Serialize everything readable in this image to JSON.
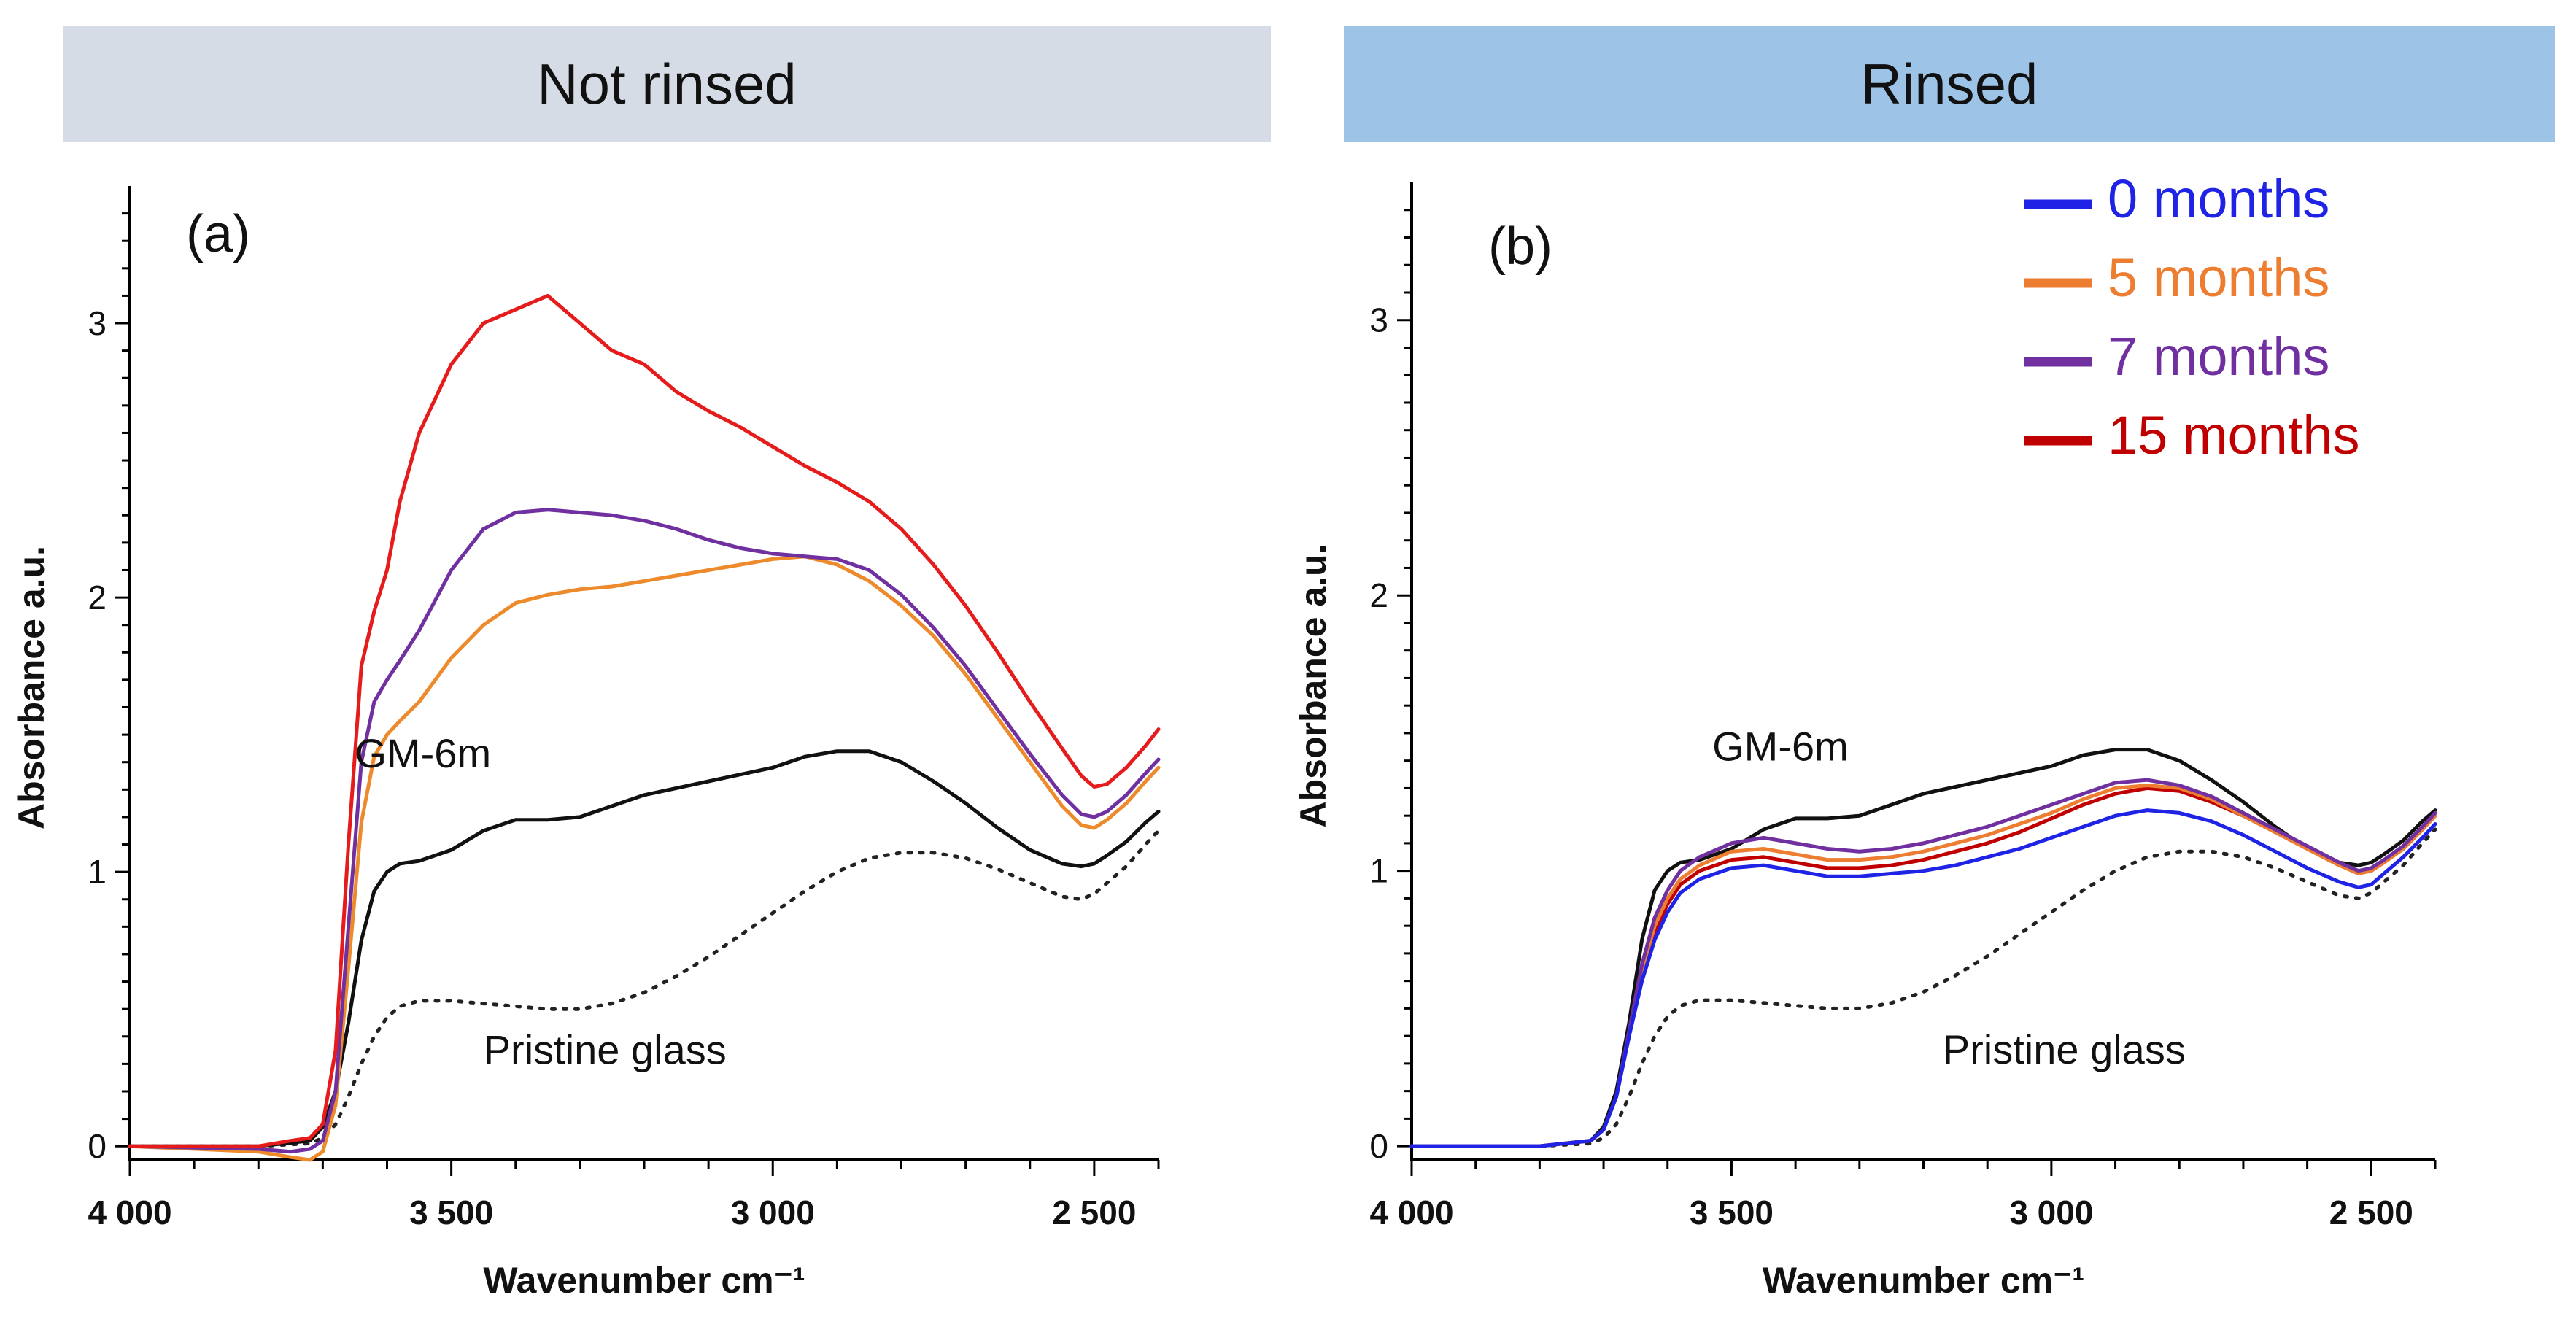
{
  "panels": [
    {
      "banner": "Not rinsed",
      "banner_color": "#d6dce5"
    },
    {
      "banner": "Rinsed",
      "banner_color": "#9dc3e6"
    }
  ],
  "chart_data": [
    {
      "type": "line",
      "panel_label": "(a)",
      "xlabel": "Wavenumber cm⁻¹",
      "ylabel": "Absorbance a.u.",
      "xlim": [
        4000,
        2400
      ],
      "ylim": [
        -0.05,
        3.5
      ],
      "xticks": [
        4000,
        3500,
        3000,
        2500
      ],
      "xtick_labels": [
        "4 000",
        "3 500",
        "3 000",
        "2 500"
      ],
      "yticks": [
        0,
        1,
        2,
        3
      ],
      "ytick_labels": [
        "0",
        "1",
        "2",
        "3"
      ],
      "annotations": [
        {
          "text": "GM-6m",
          "x": 3650,
          "y": 1.38
        },
        {
          "text": "Pristine glass",
          "x": 3450,
          "y": 0.3
        }
      ],
      "series": [
        {
          "name": "Pristine glass",
          "color": "#222222",
          "dashed": true,
          "x": [
            4000,
            3800,
            3720,
            3700,
            3680,
            3660,
            3640,
            3620,
            3600,
            3580,
            3550,
            3500,
            3450,
            3400,
            3350,
            3300,
            3250,
            3200,
            3150,
            3100,
            3050,
            3000,
            2950,
            2900,
            2850,
            2800,
            2750,
            2700,
            2650,
            2600,
            2550,
            2520,
            2500,
            2480,
            2450,
            2420,
            2400
          ],
          "y": [
            0.0,
            0.0,
            0.01,
            0.03,
            0.08,
            0.18,
            0.3,
            0.4,
            0.47,
            0.51,
            0.53,
            0.53,
            0.52,
            0.51,
            0.5,
            0.5,
            0.52,
            0.56,
            0.62,
            0.69,
            0.77,
            0.85,
            0.93,
            1.0,
            1.05,
            1.07,
            1.07,
            1.05,
            1.01,
            0.96,
            0.91,
            0.9,
            0.92,
            0.96,
            1.02,
            1.1,
            1.15
          ]
        },
        {
          "name": "GM-6m",
          "color": "#111111",
          "x": [
            4000,
            3800,
            3720,
            3700,
            3680,
            3660,
            3640,
            3620,
            3600,
            3580,
            3550,
            3500,
            3450,
            3400,
            3350,
            3300,
            3250,
            3200,
            3100,
            3000,
            2950,
            2900,
            2850,
            2800,
            2750,
            2700,
            2650,
            2600,
            2550,
            2520,
            2500,
            2480,
            2450,
            2420,
            2400
          ],
          "y": [
            0.0,
            0.0,
            0.02,
            0.07,
            0.2,
            0.45,
            0.75,
            0.93,
            1.0,
            1.03,
            1.04,
            1.08,
            1.15,
            1.19,
            1.19,
            1.2,
            1.24,
            1.28,
            1.33,
            1.38,
            1.42,
            1.44,
            1.44,
            1.4,
            1.33,
            1.25,
            1.16,
            1.08,
            1.03,
            1.02,
            1.03,
            1.06,
            1.11,
            1.18,
            1.22
          ]
        },
        {
          "name": "5 months",
          "color": "#ed8a2c",
          "x": [
            4000,
            3800,
            3750,
            3720,
            3700,
            3680,
            3660,
            3640,
            3620,
            3600,
            3580,
            3550,
            3500,
            3450,
            3400,
            3350,
            3300,
            3250,
            3200,
            3150,
            3100,
            3050,
            3000,
            2950,
            2900,
            2850,
            2800,
            2750,
            2700,
            2650,
            2600,
            2550,
            2520,
            2500,
            2480,
            2450,
            2420,
            2400
          ],
          "y": [
            0.0,
            -0.02,
            -0.04,
            -0.05,
            -0.02,
            0.15,
            0.65,
            1.18,
            1.42,
            1.5,
            1.55,
            1.62,
            1.78,
            1.9,
            1.98,
            2.01,
            2.03,
            2.04,
            2.06,
            2.08,
            2.1,
            2.12,
            2.14,
            2.15,
            2.12,
            2.06,
            1.97,
            1.86,
            1.72,
            1.56,
            1.4,
            1.24,
            1.17,
            1.16,
            1.19,
            1.25,
            1.33,
            1.38
          ]
        },
        {
          "name": "7 months",
          "color": "#7030a0",
          "x": [
            4000,
            3800,
            3750,
            3720,
            3700,
            3680,
            3660,
            3640,
            3620,
            3600,
            3580,
            3550,
            3500,
            3450,
            3400,
            3350,
            3300,
            3250,
            3200,
            3150,
            3100,
            3050,
            3000,
            2950,
            2900,
            2850,
            2800,
            2750,
            2700,
            2650,
            2600,
            2550,
            2520,
            2500,
            2480,
            2450,
            2420,
            2400
          ],
          "y": [
            0.0,
            -0.01,
            -0.02,
            -0.01,
            0.02,
            0.2,
            0.8,
            1.4,
            1.62,
            1.7,
            1.77,
            1.88,
            2.1,
            2.25,
            2.31,
            2.32,
            2.31,
            2.3,
            2.28,
            2.25,
            2.21,
            2.18,
            2.16,
            2.15,
            2.14,
            2.1,
            2.01,
            1.89,
            1.75,
            1.59,
            1.43,
            1.28,
            1.21,
            1.2,
            1.22,
            1.28,
            1.36,
            1.41
          ]
        },
        {
          "name": "15 months",
          "color": "#e61b1b",
          "x": [
            4000,
            3800,
            3750,
            3720,
            3700,
            3680,
            3660,
            3640,
            3620,
            3600,
            3580,
            3550,
            3500,
            3450,
            3400,
            3350,
            3300,
            3250,
            3200,
            3150,
            3100,
            3050,
            3000,
            2950,
            2900,
            2850,
            2800,
            2750,
            2700,
            2650,
            2600,
            2550,
            2520,
            2500,
            2480,
            2450,
            2420,
            2400
          ],
          "y": [
            0.0,
            0.0,
            0.02,
            0.03,
            0.08,
            0.35,
            1.1,
            1.75,
            1.95,
            2.1,
            2.35,
            2.6,
            2.85,
            3.0,
            3.05,
            3.1,
            3.0,
            2.9,
            2.85,
            2.75,
            2.68,
            2.62,
            2.55,
            2.48,
            2.42,
            2.35,
            2.25,
            2.12,
            1.97,
            1.8,
            1.62,
            1.45,
            1.35,
            1.31,
            1.32,
            1.38,
            1.46,
            1.52
          ]
        }
      ]
    },
    {
      "type": "line",
      "panel_label": "(b)",
      "xlabel": "Wavenumber cm⁻¹",
      "ylabel": "Absorbance a.u.",
      "xlim": [
        4000,
        2400
      ],
      "ylim": [
        -0.05,
        3.5
      ],
      "xticks": [
        4000,
        3500,
        3000,
        2500
      ],
      "xtick_labels": [
        "4 000",
        "3 500",
        "3 000",
        "2 500"
      ],
      "yticks": [
        0,
        1,
        2,
        3
      ],
      "ytick_labels": [
        "0",
        "1",
        "2",
        "3"
      ],
      "annotations": [
        {
          "text": "GM-6m",
          "x": 3530,
          "y": 1.4
        },
        {
          "text": "Pristine glass",
          "x": 3170,
          "y": 0.3
        }
      ],
      "legend": {
        "position": "top-right",
        "entries": [
          {
            "label": "0 months",
            "color": "#1f23e6"
          },
          {
            "label": "5 months",
            "color": "#ed7d31"
          },
          {
            "label": "7 months",
            "color": "#7030a0"
          },
          {
            "label": "15 months",
            "color": "#c00000"
          }
        ]
      },
      "series": [
        {
          "name": "Pristine glass",
          "color": "#222222",
          "dashed": true,
          "x": [
            4000,
            3800,
            3720,
            3700,
            3680,
            3660,
            3640,
            3620,
            3600,
            3580,
            3550,
            3500,
            3450,
            3400,
            3350,
            3300,
            3250,
            3200,
            3150,
            3100,
            3050,
            3000,
            2950,
            2900,
            2850,
            2800,
            2750,
            2700,
            2650,
            2600,
            2550,
            2520,
            2500,
            2480,
            2450,
            2420,
            2400
          ],
          "y": [
            0.0,
            0.0,
            0.01,
            0.03,
            0.08,
            0.18,
            0.3,
            0.4,
            0.47,
            0.51,
            0.53,
            0.53,
            0.52,
            0.51,
            0.5,
            0.5,
            0.52,
            0.56,
            0.62,
            0.69,
            0.77,
            0.85,
            0.93,
            1.0,
            1.05,
            1.07,
            1.07,
            1.05,
            1.01,
            0.96,
            0.91,
            0.9,
            0.92,
            0.96,
            1.02,
            1.1,
            1.15
          ]
        },
        {
          "name": "GM-6m",
          "color": "#111111",
          "x": [
            4000,
            3800,
            3720,
            3700,
            3680,
            3660,
            3640,
            3620,
            3600,
            3580,
            3550,
            3500,
            3450,
            3400,
            3350,
            3300,
            3250,
            3200,
            3100,
            3000,
            2950,
            2900,
            2850,
            2800,
            2750,
            2700,
            2650,
            2600,
            2550,
            2520,
            2500,
            2480,
            2450,
            2420,
            2400
          ],
          "y": [
            0.0,
            0.0,
            0.02,
            0.07,
            0.2,
            0.45,
            0.75,
            0.93,
            1.0,
            1.03,
            1.04,
            1.08,
            1.15,
            1.19,
            1.19,
            1.2,
            1.24,
            1.28,
            1.33,
            1.38,
            1.42,
            1.44,
            1.44,
            1.4,
            1.33,
            1.25,
            1.16,
            1.08,
            1.03,
            1.02,
            1.03,
            1.06,
            1.11,
            1.18,
            1.22
          ]
        },
        {
          "name": "15 months",
          "color": "#c00000",
          "x": [
            4000,
            3800,
            3720,
            3700,
            3680,
            3660,
            3640,
            3620,
            3600,
            3580,
            3550,
            3500,
            3450,
            3400,
            3350,
            3300,
            3250,
            3200,
            3150,
            3100,
            3050,
            3000,
            2950,
            2900,
            2850,
            2800,
            2750,
            2700,
            2650,
            2600,
            2550,
            2520,
            2500,
            2480,
            2450,
            2420,
            2400
          ],
          "y": [
            0.0,
            0.0,
            0.02,
            0.06,
            0.18,
            0.4,
            0.62,
            0.78,
            0.88,
            0.95,
            1.0,
            1.04,
            1.05,
            1.03,
            1.01,
            1.01,
            1.02,
            1.04,
            1.07,
            1.1,
            1.14,
            1.19,
            1.24,
            1.28,
            1.3,
            1.29,
            1.25,
            1.2,
            1.14,
            1.08,
            1.02,
            1.0,
            1.0,
            1.03,
            1.08,
            1.15,
            1.2
          ]
        },
        {
          "name": "5 months",
          "color": "#ed7d31",
          "x": [
            4000,
            3800,
            3720,
            3700,
            3680,
            3660,
            3640,
            3620,
            3600,
            3580,
            3550,
            3500,
            3450,
            3400,
            3350,
            3300,
            3250,
            3200,
            3150,
            3100,
            3050,
            3000,
            2950,
            2900,
            2850,
            2800,
            2750,
            2700,
            2650,
            2600,
            2550,
            2520,
            2500,
            2480,
            2450,
            2420,
            2400
          ],
          "y": [
            0.0,
            0.0,
            0.02,
            0.06,
            0.18,
            0.41,
            0.64,
            0.8,
            0.9,
            0.97,
            1.02,
            1.07,
            1.08,
            1.06,
            1.04,
            1.04,
            1.05,
            1.07,
            1.1,
            1.13,
            1.17,
            1.21,
            1.26,
            1.3,
            1.31,
            1.3,
            1.26,
            1.2,
            1.14,
            1.08,
            1.02,
            0.99,
            1.0,
            1.03,
            1.08,
            1.15,
            1.2
          ]
        },
        {
          "name": "7 months",
          "color": "#7030a0",
          "x": [
            4000,
            3800,
            3720,
            3700,
            3680,
            3660,
            3640,
            3620,
            3600,
            3580,
            3550,
            3500,
            3450,
            3400,
            3350,
            3300,
            3250,
            3200,
            3150,
            3100,
            3050,
            3000,
            2950,
            2900,
            2850,
            2800,
            2750,
            2700,
            2650,
            2600,
            2550,
            2520,
            2500,
            2480,
            2450,
            2420,
            2400
          ],
          "y": [
            0.0,
            0.0,
            0.02,
            0.06,
            0.18,
            0.42,
            0.66,
            0.83,
            0.93,
            1.0,
            1.05,
            1.1,
            1.12,
            1.1,
            1.08,
            1.07,
            1.08,
            1.1,
            1.13,
            1.16,
            1.2,
            1.24,
            1.28,
            1.32,
            1.33,
            1.31,
            1.27,
            1.21,
            1.15,
            1.09,
            1.03,
            1.0,
            1.01,
            1.04,
            1.09,
            1.16,
            1.21
          ]
        },
        {
          "name": "0 months",
          "color": "#1f23e6",
          "x": [
            4000,
            3800,
            3720,
            3700,
            3680,
            3660,
            3640,
            3620,
            3600,
            3580,
            3550,
            3500,
            3450,
            3400,
            3350,
            3300,
            3250,
            3200,
            3150,
            3100,
            3050,
            3000,
            2950,
            2900,
            2850,
            2800,
            2750,
            2700,
            2650,
            2600,
            2550,
            2520,
            2500,
            2480,
            2450,
            2420,
            2400
          ],
          "y": [
            0.0,
            0.0,
            0.02,
            0.06,
            0.18,
            0.4,
            0.6,
            0.75,
            0.85,
            0.92,
            0.97,
            1.01,
            1.02,
            1.0,
            0.98,
            0.98,
            0.99,
            1.0,
            1.02,
            1.05,
            1.08,
            1.12,
            1.16,
            1.2,
            1.22,
            1.21,
            1.18,
            1.13,
            1.07,
            1.01,
            0.96,
            0.94,
            0.95,
            0.99,
            1.05,
            1.12,
            1.17
          ]
        }
      ]
    }
  ]
}
